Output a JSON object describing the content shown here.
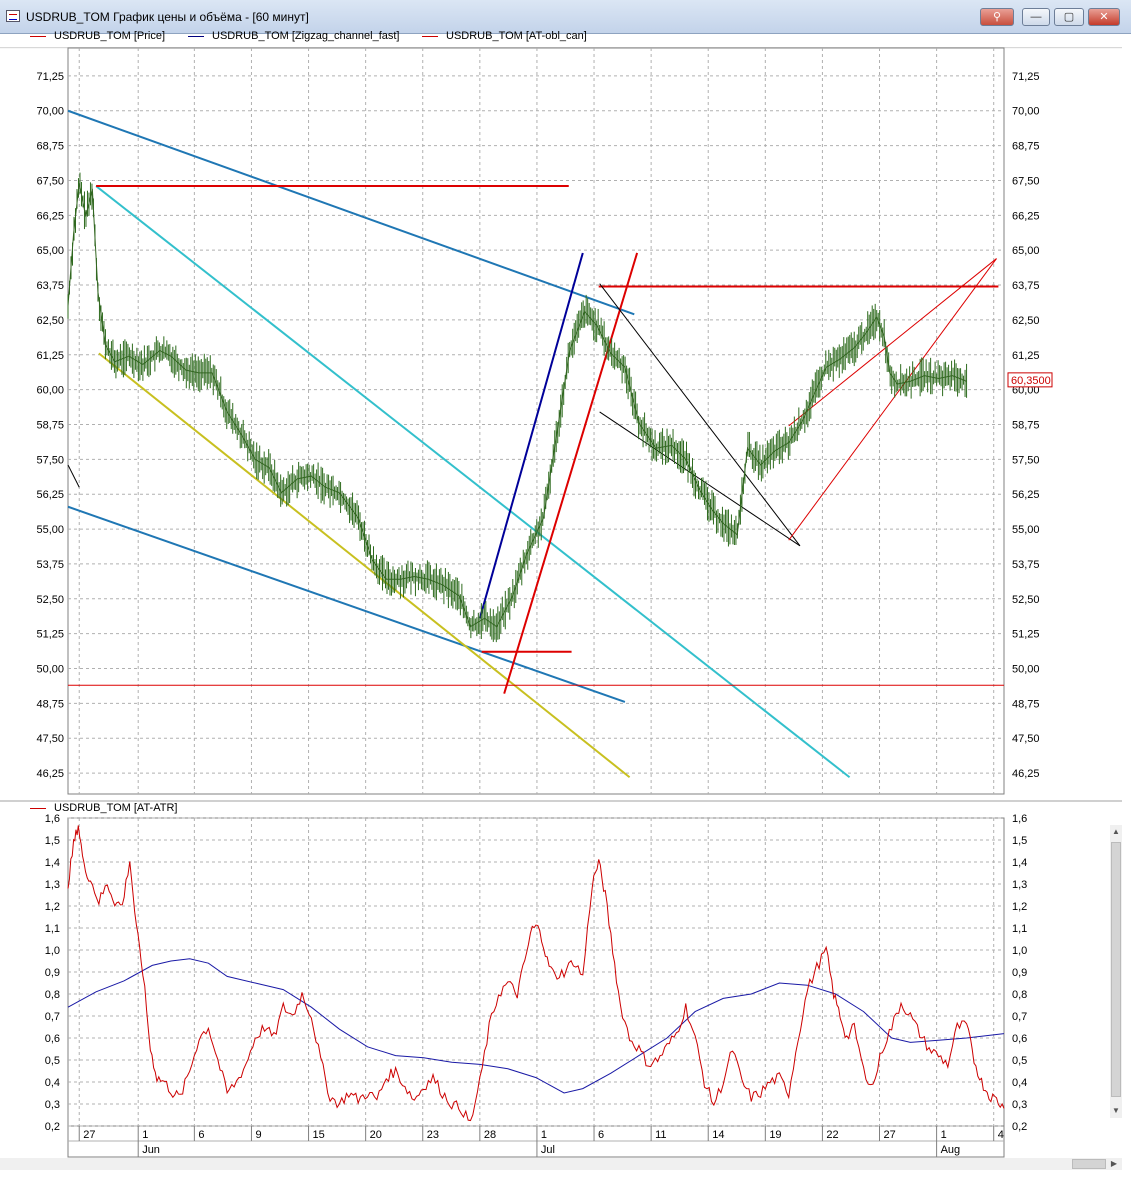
{
  "window": {
    "title": "USDRUB_TOM График цены и объёма - [60 минут]",
    "buttons": {
      "pin": "⚲",
      "minimize": "—",
      "maximize": "▢",
      "close": "✕"
    }
  },
  "legend_top": [
    {
      "label": "USDRUB_TOM [Price]",
      "color": "#cc0000"
    },
    {
      "label": "USDRUB_TOM [Zigzag_channel_fast]",
      "color": "#000080"
    },
    {
      "label": "USDRUB_TOM [AT-obl_can]",
      "color": "#cc0000"
    }
  ],
  "legend_bottom": [
    {
      "label": "USDRUB_TOM [AT-ATR]",
      "color": "#cc0000"
    }
  ],
  "chart_data": [
    {
      "type": "line",
      "name": "price",
      "x_range": [
        0,
        100
      ],
      "ylim": [
        45.5,
        72.25
      ],
      "y_ticks": [
        "71,25",
        "70,00",
        "68,75",
        "67,50",
        "66,25",
        "65,00",
        "63,75",
        "62,50",
        "61,25",
        "60,00",
        "58,75",
        "57,50",
        "56,25",
        "55,00",
        "53,75",
        "52,50",
        "51,25",
        "50,00",
        "48,75",
        "47,50",
        "46,25"
      ],
      "last_price_label": "60,3500",
      "last_price": 60.35,
      "grid": true,
      "price_points": [
        [
          0,
          63.0
        ],
        [
          0.6,
          65.6
        ],
        [
          1.2,
          67.4
        ],
        [
          1.9,
          66.2
        ],
        [
          2.6,
          67.2
        ],
        [
          3.2,
          63.5
        ],
        [
          4.0,
          61.6
        ],
        [
          5.0,
          61.0
        ],
        [
          6.5,
          61.2
        ],
        [
          8.0,
          60.9
        ],
        [
          9.8,
          61.4
        ],
        [
          11.0,
          61.2
        ],
        [
          12.6,
          60.7
        ],
        [
          14.0,
          60.6
        ],
        [
          15.4,
          60.6
        ],
        [
          17.0,
          59.2
        ],
        [
          18.5,
          58.4
        ],
        [
          20.0,
          57.5
        ],
        [
          21.5,
          57.2
        ],
        [
          22.8,
          56.3
        ],
        [
          24.5,
          56.8
        ],
        [
          26.0,
          56.9
        ],
        [
          27.5,
          56.5
        ],
        [
          29.0,
          56.3
        ],
        [
          31.0,
          55.4
        ],
        [
          32.5,
          53.9
        ],
        [
          34.0,
          53.2
        ],
        [
          35.5,
          53.2
        ],
        [
          37.0,
          53.3
        ],
        [
          38.5,
          53.2
        ],
        [
          40.0,
          53.0
        ],
        [
          41.8,
          52.6
        ],
        [
          43.0,
          51.5
        ],
        [
          44.5,
          51.8
        ],
        [
          45.8,
          51.5
        ],
        [
          47.5,
          52.6
        ],
        [
          49.0,
          54.1
        ],
        [
          50.8,
          55.4
        ],
        [
          52.4,
          58.8
        ],
        [
          53.6,
          61.4
        ],
        [
          55.2,
          62.8
        ],
        [
          56.5,
          62.3
        ],
        [
          58.0,
          61.3
        ],
        [
          59.5,
          60.8
        ],
        [
          61.0,
          58.8
        ],
        [
          62.8,
          57.9
        ],
        [
          64.5,
          58.0
        ],
        [
          66.0,
          57.5
        ],
        [
          67.5,
          56.4
        ],
        [
          68.8,
          55.7
        ],
        [
          70.0,
          55.2
        ],
        [
          71.5,
          54.8
        ],
        [
          72.6,
          57.9
        ],
        [
          74.0,
          57.3
        ],
        [
          75.5,
          57.8
        ],
        [
          77.0,
          58.1
        ],
        [
          78.5,
          58.9
        ],
        [
          79.8,
          59.9
        ],
        [
          81.0,
          60.8
        ],
        [
          82.5,
          61.1
        ],
        [
          84.0,
          61.5
        ],
        [
          85.2,
          62.0
        ],
        [
          86.4,
          62.6
        ],
        [
          87.2,
          61.9
        ],
        [
          87.8,
          60.6
        ],
        [
          88.6,
          60.2
        ],
        [
          90.0,
          60.3
        ],
        [
          91.5,
          60.5
        ],
        [
          93.0,
          60.4
        ],
        [
          94.5,
          60.5
        ],
        [
          96.0,
          60.3
        ]
      ],
      "zigzag_channel_fast": [
        {
          "from": [
            0,
            70.0
          ],
          "to": [
            60.5,
            62.7
          ],
          "color": "#1f77b4"
        },
        {
          "from": [
            0,
            55.8
          ],
          "to": [
            59.5,
            48.8
          ],
          "color": "#1f77b4"
        },
        {
          "from": [
            3.0,
            67.3
          ],
          "to": [
            83.5,
            46.1
          ],
          "color": "#33c0cc"
        },
        {
          "from": [
            3.3,
            61.3
          ],
          "to": [
            60.0,
            46.1
          ],
          "color": "#c8c020"
        },
        {
          "from": [
            44.0,
            51.8
          ],
          "to": [
            55.0,
            64.9
          ],
          "color": "#000099"
        },
        {
          "from": [
            46.6,
            49.1
          ],
          "to": [
            60.8,
            64.9
          ],
          "color": "#dd0000"
        }
      ],
      "levels": [
        {
          "from": [
            3.0,
            67.3
          ],
          "to": [
            53.5,
            67.3
          ],
          "color": "#dd0000"
        },
        {
          "from": [
            56.7,
            63.7
          ],
          "to": [
            99.4,
            63.7
          ],
          "color": "#dd0000"
        },
        {
          "from": [
            44.2,
            50.6
          ],
          "to": [
            53.8,
            50.6
          ],
          "color": "#dd0000"
        },
        {
          "from": [
            0,
            49.4
          ],
          "to": [
            100,
            49.4
          ],
          "color": "#dd0000"
        }
      ],
      "thin_channels": [
        {
          "from": [
            56.8,
            63.8
          ],
          "to": [
            78.2,
            54.4
          ],
          "color": "#000000"
        },
        {
          "from": [
            56.8,
            59.2
          ],
          "to": [
            78.2,
            54.4
          ],
          "color": "#000000"
        },
        {
          "from": [
            77.0,
            54.6
          ],
          "to": [
            99.2,
            64.7
          ],
          "color": "#dd0000"
        },
        {
          "from": [
            77.0,
            58.7
          ],
          "to": [
            99.2,
            64.7
          ],
          "color": "#dd0000"
        },
        {
          "from": [
            0,
            57.3
          ],
          "to": [
            1.2,
            56.5
          ],
          "color": "#000000"
        }
      ]
    },
    {
      "type": "line",
      "name": "atr",
      "x_range": [
        0,
        100
      ],
      "ylim": [
        0.2,
        1.6
      ],
      "y_ticks": [
        "1,6",
        "1,5",
        "1,4",
        "1,3",
        "1,2",
        "1,1",
        "1,0",
        "0,9",
        "0,8",
        "0,7",
        "0,6",
        "0,5",
        "0,4",
        "0,3",
        "0,2"
      ],
      "grid": true,
      "atr_red": [
        [
          0,
          1.3
        ],
        [
          0.6,
          1.48
        ],
        [
          1.1,
          1.57
        ],
        [
          1.7,
          1.38
        ],
        [
          2.4,
          1.32
        ],
        [
          3.3,
          1.22
        ],
        [
          4.2,
          1.3
        ],
        [
          5.0,
          1.22
        ],
        [
          5.8,
          1.2
        ],
        [
          6.6,
          1.41
        ],
        [
          7.3,
          1.1
        ],
        [
          8.0,
          0.9
        ],
        [
          8.8,
          0.55
        ],
        [
          9.5,
          0.42
        ],
        [
          10.3,
          0.4
        ],
        [
          11.2,
          0.35
        ],
        [
          12.0,
          0.33
        ],
        [
          13.0,
          0.45
        ],
        [
          14.0,
          0.6
        ],
        [
          15.0,
          0.65
        ],
        [
          16.0,
          0.5
        ],
        [
          17.0,
          0.35
        ],
        [
          18.0,
          0.4
        ],
        [
          19.0,
          0.48
        ],
        [
          20.0,
          0.6
        ],
        [
          21.0,
          0.65
        ],
        [
          22.0,
          0.6
        ],
        [
          23.0,
          0.74
        ],
        [
          24.0,
          0.7
        ],
        [
          25.0,
          0.8
        ],
        [
          26.0,
          0.7
        ],
        [
          27.0,
          0.5
        ],
        [
          28.0,
          0.33
        ],
        [
          29.0,
          0.3
        ],
        [
          30.0,
          0.35
        ],
        [
          31.0,
          0.32
        ],
        [
          32.0,
          0.35
        ],
        [
          33.0,
          0.32
        ],
        [
          34.0,
          0.42
        ],
        [
          35.0,
          0.45
        ],
        [
          36.0,
          0.38
        ],
        [
          37.0,
          0.32
        ],
        [
          38.0,
          0.38
        ],
        [
          39.0,
          0.42
        ],
        [
          40.0,
          0.35
        ],
        [
          41.0,
          0.3
        ],
        [
          42.0,
          0.28
        ],
        [
          43.0,
          0.21
        ],
        [
          44.0,
          0.4
        ],
        [
          45.0,
          0.65
        ],
        [
          46.0,
          0.8
        ],
        [
          47.0,
          0.85
        ],
        [
          48.0,
          0.8
        ],
        [
          48.8,
          0.95
        ],
        [
          49.6,
          1.1
        ],
        [
          50.4,
          1.1
        ],
        [
          51.2,
          0.95
        ],
        [
          52.0,
          0.88
        ],
        [
          53.0,
          0.9
        ],
        [
          54.0,
          0.95
        ],
        [
          55.0,
          0.88
        ],
        [
          56.0,
          1.3
        ],
        [
          56.7,
          1.4
        ],
        [
          57.4,
          1.25
        ],
        [
          58.2,
          1.0
        ],
        [
          59.0,
          0.75
        ],
        [
          60.0,
          0.6
        ],
        [
          61.0,
          0.55
        ],
        [
          62.0,
          0.48
        ],
        [
          63.0,
          0.5
        ],
        [
          64.0,
          0.56
        ],
        [
          65.0,
          0.62
        ],
        [
          66.0,
          0.74
        ],
        [
          67.0,
          0.6
        ],
        [
          68.0,
          0.4
        ],
        [
          69.0,
          0.3
        ],
        [
          70.0,
          0.4
        ],
        [
          71.0,
          0.55
        ],
        [
          72.0,
          0.4
        ],
        [
          73.0,
          0.33
        ],
        [
          74.0,
          0.35
        ],
        [
          75.0,
          0.4
        ],
        [
          76.0,
          0.42
        ],
        [
          77.0,
          0.35
        ],
        [
          78.0,
          0.6
        ],
        [
          79.0,
          0.82
        ],
        [
          80.0,
          0.92
        ],
        [
          81.0,
          1.0
        ],
        [
          81.8,
          0.8
        ],
        [
          82.5,
          0.7
        ],
        [
          83.2,
          0.6
        ],
        [
          84.0,
          0.65
        ],
        [
          85.0,
          0.45
        ],
        [
          86.0,
          0.38
        ],
        [
          87.0,
          0.55
        ],
        [
          88.0,
          0.65
        ],
        [
          89.0,
          0.76
        ],
        [
          90.0,
          0.7
        ],
        [
          91.0,
          0.62
        ],
        [
          92.0,
          0.55
        ],
        [
          93.0,
          0.52
        ],
        [
          94.0,
          0.48
        ],
        [
          95.0,
          0.65
        ],
        [
          96.0,
          0.66
        ],
        [
          96.8,
          0.5
        ],
        [
          97.6,
          0.4
        ],
        [
          98.4,
          0.34
        ],
        [
          99.2,
          0.32
        ],
        [
          100,
          0.28
        ]
      ],
      "atr_blue": [
        [
          0,
          0.74
        ],
        [
          3,
          0.81
        ],
        [
          6,
          0.86
        ],
        [
          9,
          0.93
        ],
        [
          11,
          0.95
        ],
        [
          13,
          0.96
        ],
        [
          15,
          0.94
        ],
        [
          17,
          0.88
        ],
        [
          20,
          0.85
        ],
        [
          23,
          0.82
        ],
        [
          26,
          0.74
        ],
        [
          29,
          0.64
        ],
        [
          32,
          0.56
        ],
        [
          35,
          0.52
        ],
        [
          38,
          0.51
        ],
        [
          41,
          0.49
        ],
        [
          44,
          0.48
        ],
        [
          47,
          0.46
        ],
        [
          50,
          0.42
        ],
        [
          53,
          0.35
        ],
        [
          55,
          0.37
        ],
        [
          58,
          0.44
        ],
        [
          61,
          0.52
        ],
        [
          64,
          0.6
        ],
        [
          67,
          0.72
        ],
        [
          70,
          0.78
        ],
        [
          73,
          0.8
        ],
        [
          76,
          0.85
        ],
        [
          79,
          0.84
        ],
        [
          82,
          0.8
        ],
        [
          85,
          0.72
        ],
        [
          88,
          0.6
        ],
        [
          90,
          0.58
        ],
        [
          93,
          0.59
        ],
        [
          96,
          0.6
        ],
        [
          100,
          0.62
        ]
      ]
    }
  ],
  "x_axis": {
    "day_labels": [
      {
        "t": 1.2,
        "label": "27"
      },
      {
        "t": 7.5,
        "label": "1"
      },
      {
        "t": 13.5,
        "label": "6"
      },
      {
        "t": 19.6,
        "label": "9"
      },
      {
        "t": 25.7,
        "label": "15"
      },
      {
        "t": 31.8,
        "label": "20"
      },
      {
        "t": 37.9,
        "label": "23"
      },
      {
        "t": 44.0,
        "label": "28"
      },
      {
        "t": 50.1,
        "label": "1"
      },
      {
        "t": 56.2,
        "label": "6"
      },
      {
        "t": 62.3,
        "label": "11"
      },
      {
        "t": 68.4,
        "label": "14"
      },
      {
        "t": 74.5,
        "label": "19"
      },
      {
        "t": 80.6,
        "label": "22"
      },
      {
        "t": 86.7,
        "label": "27"
      },
      {
        "t": 92.8,
        "label": "1"
      },
      {
        "t": 98.9,
        "label": "4"
      }
    ],
    "month_labels": [
      {
        "t": 7.5,
        "label": "Jun"
      },
      {
        "t": 50.1,
        "label": "Jul"
      },
      {
        "t": 92.8,
        "label": "Aug"
      }
    ]
  }
}
